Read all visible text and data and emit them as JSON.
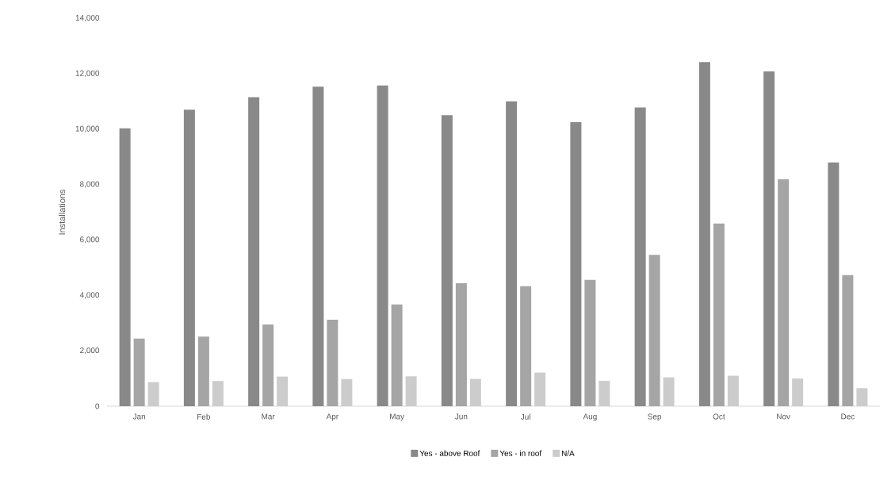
{
  "chart_data": {
    "type": "bar",
    "ylabel": "Installations",
    "categories": [
      "Jan",
      "Feb",
      "Mar",
      "Apr",
      "May",
      "Jun",
      "Jul",
      "Aug",
      "Sep",
      "Oct",
      "Nov",
      "Dec"
    ],
    "series": [
      {
        "name": "Yes - above Roof",
        "color": "#898989",
        "values": [
          10030,
          10700,
          11150,
          11530,
          11570,
          10500,
          11000,
          10250,
          10780,
          12420,
          12080,
          8800
        ]
      },
      {
        "name": "Yes - in roof",
        "color": "#a5a5a5",
        "values": [
          2440,
          2510,
          2950,
          3120,
          3670,
          4440,
          4330,
          4560,
          5460,
          6590,
          8190,
          4730
        ]
      },
      {
        "name": "N/A",
        "color": "#cccccc",
        "values": [
          870,
          910,
          1070,
          980,
          1080,
          985,
          1215,
          915,
          1040,
          1100,
          1000,
          650
        ]
      }
    ],
    "ylim": [
      0,
      14000
    ],
    "yticks": [
      0,
      {
        "value": 2000,
        "label": "2,000"
      },
      {
        "value": 4000,
        "label": "4,000"
      },
      {
        "value": 6000,
        "label": "6,000"
      },
      {
        "value": 8000,
        "label": "8,000"
      },
      {
        "value": 10000,
        "label": "10,000"
      },
      {
        "value": 12000,
        "label": "12,000"
      },
      {
        "value": 14000,
        "label": "14,000"
      }
    ],
    "grid": false,
    "legend": "bottom"
  }
}
